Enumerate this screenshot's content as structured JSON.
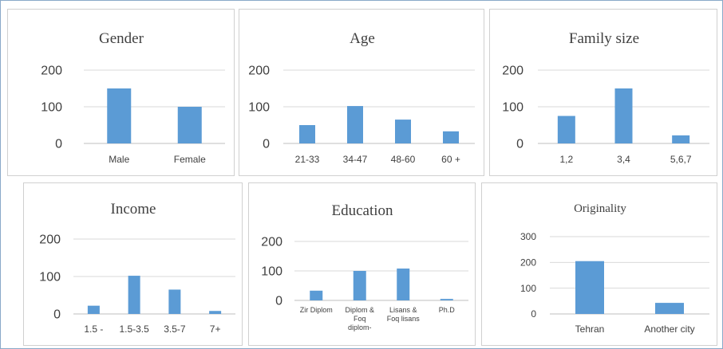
{
  "chart_data": [
    {
      "type": "bar",
      "title": "Gender",
      "categories": [
        "Male",
        "Female"
      ],
      "values": [
        150,
        100
      ],
      "ylim": [
        0,
        200
      ],
      "yticks": [
        0,
        100,
        200
      ],
      "grid": true,
      "color": "#5b9bd5"
    },
    {
      "type": "bar",
      "title": "Age",
      "categories": [
        "21-33",
        "34-47",
        "48-60",
        "60 +"
      ],
      "values": [
        50,
        102,
        65,
        33
      ],
      "ylim": [
        0,
        200
      ],
      "yticks": [
        0,
        100,
        200
      ],
      "grid": true,
      "color": "#5b9bd5"
    },
    {
      "type": "bar",
      "title": "Family size",
      "categories": [
        "1,2",
        "3,4",
        "5,6,7"
      ],
      "values": [
        75,
        150,
        22
      ],
      "ylim": [
        0,
        200
      ],
      "yticks": [
        0,
        100,
        200
      ],
      "grid": true,
      "color": "#5b9bd5"
    },
    {
      "type": "bar",
      "title": "Income",
      "categories": [
        "1.5 -",
        "1.5-3.5",
        "3.5-7",
        "7+"
      ],
      "values": [
        22,
        102,
        65,
        8
      ],
      "ylim": [
        0,
        200
      ],
      "yticks": [
        0,
        100,
        200
      ],
      "grid": true,
      "color": "#5b9bd5"
    },
    {
      "type": "bar",
      "title": "Education",
      "categories": [
        [
          "Zir Diplom"
        ],
        [
          "Diplom &",
          "Foq",
          "diplom-"
        ],
        [
          "Lisans &",
          "Foq lisans"
        ],
        [
          "Ph.D"
        ]
      ],
      "values": [
        33,
        100,
        108,
        5
      ],
      "ylim": [
        0,
        200
      ],
      "yticks": [
        0,
        100,
        200
      ],
      "grid": true,
      "color": "#5b9bd5"
    },
    {
      "type": "bar",
      "title": "Originality",
      "categories": [
        "Tehran",
        "Another city"
      ],
      "values": [
        205,
        43
      ],
      "ylim": [
        0,
        300
      ],
      "yticks": [
        0,
        100,
        200,
        300
      ],
      "grid": true,
      "color": "#5b9bd5"
    }
  ]
}
